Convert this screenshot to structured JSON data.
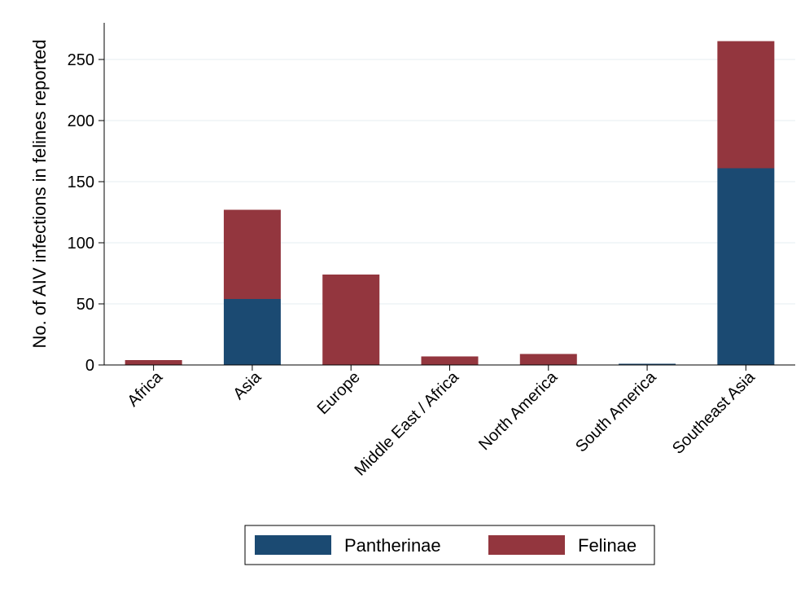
{
  "chart_data": {
    "type": "bar",
    "stacked": true,
    "categories": [
      "Africa",
      "Asia",
      "Europe",
      "Middle East / Africa",
      "North America",
      "South America",
      "Southeast Asia"
    ],
    "series": [
      {
        "name": "Pantherinae",
        "color": "#1b4a72",
        "values": [
          0,
          54,
          0,
          0,
          0,
          1,
          161
        ]
      },
      {
        "name": "Felinae",
        "color": "#93363e",
        "values": [
          4,
          73,
          74,
          7,
          9,
          0,
          104
        ]
      }
    ],
    "ylabel": "No. of AIV infections in felines reported",
    "xlabel": "",
    "ylim": [
      0,
      280
    ],
    "yticks": [
      0,
      50,
      100,
      150,
      200,
      250
    ],
    "grid": true,
    "legend_position": "bottom-center"
  }
}
